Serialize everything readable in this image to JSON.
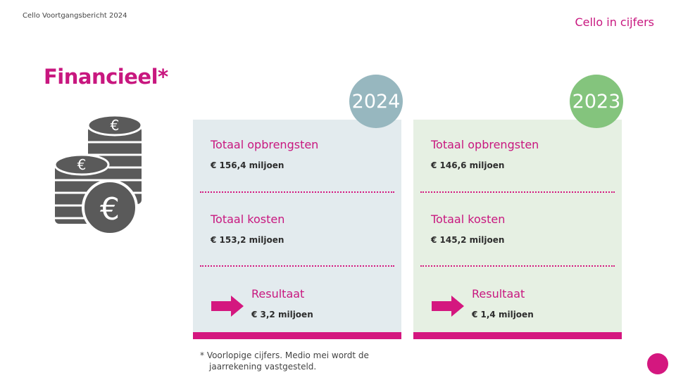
{
  "header": {
    "doc_title": "Cello Voortgangsbericht 2024",
    "section_link": "Cello in cijfers"
  },
  "page": {
    "heading": "Financieel*"
  },
  "cards": [
    {
      "year": "2024",
      "revenue_label": "Totaal opbrengsten",
      "revenue_value": "€ 156,4 miljoen",
      "costs_label": "Totaal kosten",
      "costs_value": "€ 153,2 miljoen",
      "result_label": "Resultaat",
      "result_value": "€ 3,2 miljoen"
    },
    {
      "year": "2023",
      "revenue_label": "Totaal opbrengsten",
      "revenue_value": "€ 146,6 miljoen",
      "costs_label": "Totaal kosten",
      "costs_value": "€ 145,2 miljoen",
      "result_label": "Resultaat",
      "result_value": "€ 1,4 miljoen"
    }
  ],
  "footnote": {
    "line1": "* Voorlopige cijfers. Medio mei wordt de",
    "line2": "jaarrekening vastgesteld."
  },
  "icons": {
    "coins": "euro-coins-icon",
    "arrow": "arrow-right-icon"
  },
  "colors": {
    "accent": "#c8177f",
    "badge_2024": "#97b7bf",
    "badge_2023": "#84c47d",
    "card_2024_bg": "#e3ebee",
    "card_2023_bg": "#e6f0e3"
  }
}
